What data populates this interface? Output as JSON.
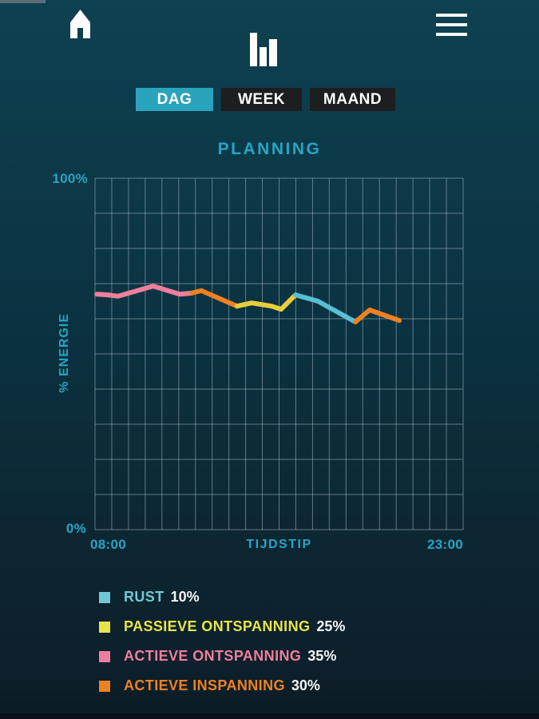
{
  "header": {
    "home_icon": "home",
    "stats_icon": "bar-chart",
    "menu_icon": "hamburger-menu"
  },
  "tabs": {
    "items": [
      {
        "label": "DAG",
        "active": true
      },
      {
        "label": "WEEK",
        "active": false
      },
      {
        "label": "MAAND",
        "active": false
      }
    ]
  },
  "title": "PLANNING",
  "chart_data": {
    "type": "line",
    "title": "PLANNING",
    "xlabel": "TIJDSTIP",
    "ylabel": "% ENERGIE",
    "x_axis": {
      "min": 8,
      "max": 23
    },
    "x_ticks": [
      {
        "label": "08:00",
        "value": 8
      },
      {
        "label": "23:00",
        "value": 23
      }
    ],
    "ylim": [
      0,
      100
    ],
    "y_ticks": [
      {
        "label": "100%",
        "value": 100
      },
      {
        "label": "0%",
        "value": 0
      }
    ],
    "grid": {
      "columns": 22,
      "rows": 10,
      "color": "rgba(185,198,210,0.5)",
      "visible": true
    },
    "legend_position": "bottom-left",
    "line_width": 6,
    "segments": [
      {
        "name": "ACTIEVE ONTSPANNING",
        "color": "#ee7f9c",
        "points": [
          [
            8.07,
            67.0
          ],
          [
            8.52,
            66.8
          ],
          [
            8.94,
            66.4
          ],
          [
            10.37,
            69.3
          ],
          [
            11.45,
            67.0
          ],
          [
            11.94,
            67.3
          ]
        ]
      },
      {
        "name": "ACTIEVE INSPANNING",
        "color": "#ee8122",
        "points": [
          [
            11.94,
            67.3
          ],
          [
            12.33,
            68.0
          ],
          [
            13.79,
            63.6
          ]
        ]
      },
      {
        "name": "PASSIEVE ONTSPANNING",
        "color": "#e8ce3a",
        "points": [
          [
            13.79,
            63.6
          ],
          [
            14.38,
            64.5
          ],
          [
            15.19,
            63.6
          ],
          [
            15.58,
            62.7
          ],
          [
            16.17,
            66.8
          ]
        ]
      },
      {
        "name": "RUST",
        "color": "#57c0d3",
        "points": [
          [
            16.17,
            66.8
          ],
          [
            17.08,
            65.0
          ],
          [
            18.61,
            59.1
          ]
        ]
      },
      {
        "name": "ACTIEVE INSPANNING",
        "color": "#ee8122",
        "points": [
          [
            18.61,
            59.1
          ],
          [
            19.19,
            62.5
          ],
          [
            20.4,
            59.5
          ]
        ]
      }
    ]
  },
  "legend": {
    "items": [
      {
        "label": "RUST",
        "value": "10%",
        "color": "#6fc9d5"
      },
      {
        "label": "PASSIEVE ONTSPANNING",
        "value": "25%",
        "color": "#e9e44a"
      },
      {
        "label": "ACTIEVE ONTSPANNING",
        "value": "35%",
        "color": "#ee7f9c"
      },
      {
        "label": "ACTIEVE INSPANNING",
        "value": "30%",
        "color": "#ee8122"
      }
    ]
  },
  "colors": {
    "accent_cyan": "#27a5c4",
    "tab_active_bg": "#2aa4bd",
    "tab_inactive_bg": "#1d1e1f",
    "icon_white": "#fdfdfd"
  }
}
